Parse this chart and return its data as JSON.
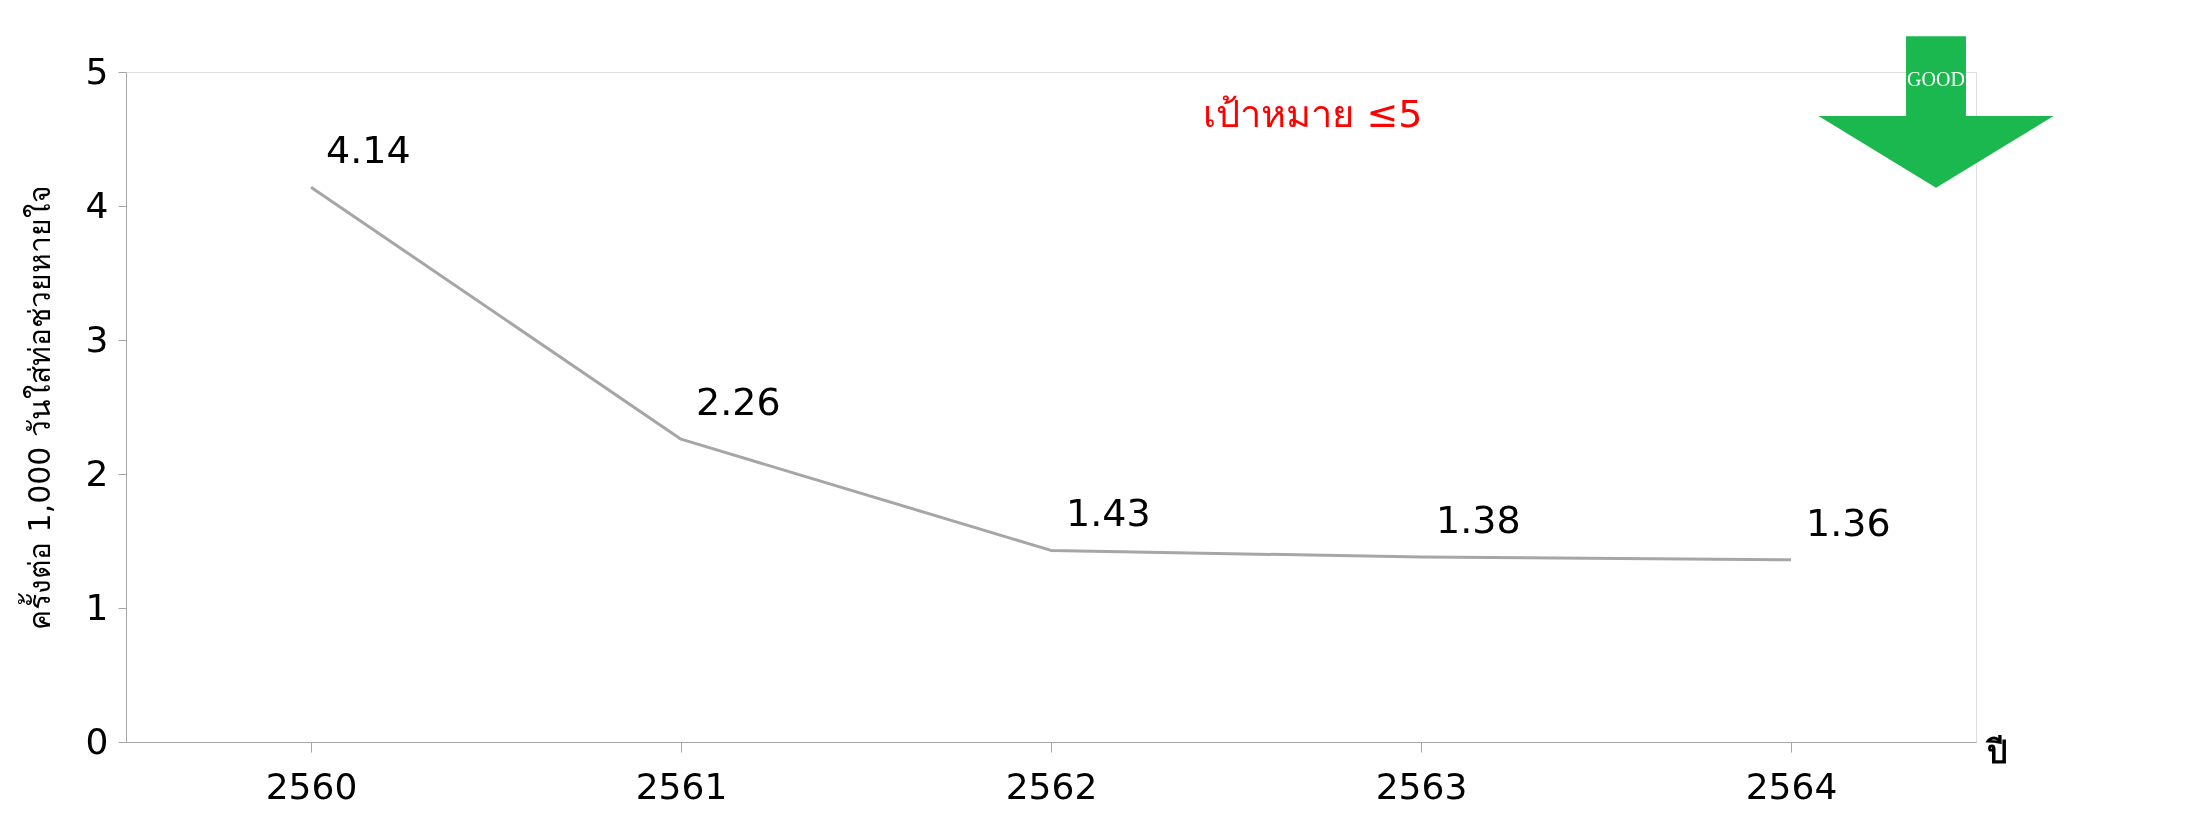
{
  "chart_data": {
    "type": "line",
    "categories": [
      "2560",
      "2561",
      "2562",
      "2563",
      "2564"
    ],
    "series": [
      {
        "color": "#a6a6a6",
        "values": [
          4.14,
          2.26,
          1.43,
          1.38,
          1.36
        ]
      }
    ],
    "ylabel": "ครั้งต่อ 1,000 วันใส่ท่อช่วยหายใจ",
    "xlabel": "ปี",
    "ylim": [
      0,
      5
    ],
    "yticks": [
      0,
      1,
      2,
      3,
      4,
      5
    ],
    "annotations": [
      "เป้าหมาย ≤5",
      "GOOD"
    ],
    "data_labels": true,
    "grid": false,
    "marker": "none"
  }
}
